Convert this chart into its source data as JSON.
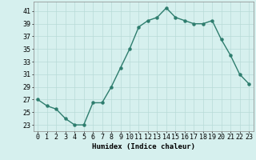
{
  "x": [
    0,
    1,
    2,
    3,
    4,
    5,
    6,
    7,
    8,
    9,
    10,
    11,
    12,
    13,
    14,
    15,
    16,
    17,
    18,
    19,
    20,
    21,
    22,
    23
  ],
  "y": [
    27,
    26,
    25.5,
    24,
    23,
    23,
    26.5,
    26.5,
    29,
    32,
    35,
    38.5,
    39.5,
    40,
    41.5,
    40,
    39.5,
    39,
    39,
    39.5,
    36.5,
    34,
    31,
    29.5
  ],
  "line_color": "#2e7d6e",
  "marker": "o",
  "marker_size": 2.2,
  "bg_color": "#d6f0ee",
  "grid_color": "#b8dbd8",
  "xlabel": "Humidex (Indice chaleur)",
  "ylabel": "",
  "xlim": [
    -0.5,
    23.5
  ],
  "ylim": [
    22,
    42.5
  ],
  "yticks": [
    23,
    25,
    27,
    29,
    31,
    33,
    35,
    37,
    39,
    41
  ],
  "xticks": [
    0,
    1,
    2,
    3,
    4,
    5,
    6,
    7,
    8,
    9,
    10,
    11,
    12,
    13,
    14,
    15,
    16,
    17,
    18,
    19,
    20,
    21,
    22,
    23
  ],
  "xlabel_fontsize": 6.5,
  "tick_fontsize": 6.0,
  "line_width": 1.0
}
